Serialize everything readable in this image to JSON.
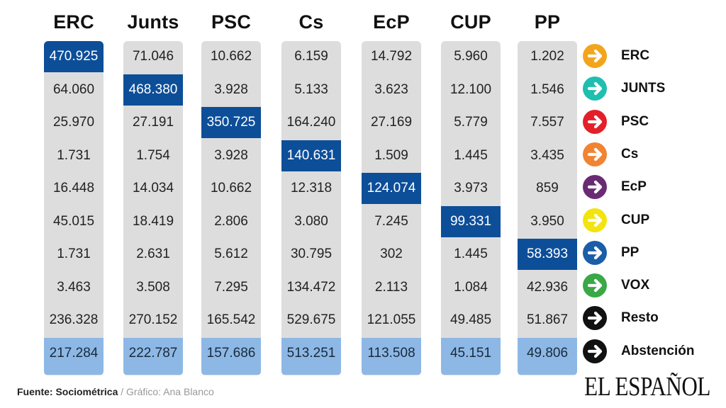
{
  "chart_data": {
    "type": "table",
    "columns": [
      "ERC",
      "Junts",
      "PSC",
      "Cs",
      "EcP",
      "CUP",
      "PP"
    ],
    "rows": [
      [
        "470.925",
        "71.046",
        "10.662",
        "6.159",
        "14.792",
        "5.960",
        "1.202"
      ],
      [
        "64.060",
        "468.380",
        "3.928",
        "5.133",
        "3.623",
        "12.100",
        "1.546"
      ],
      [
        "25.970",
        "27.191",
        "350.725",
        "164.240",
        "27.169",
        "5.779",
        "7.557"
      ],
      [
        "1.731",
        "1.754",
        "3.928",
        "140.631",
        "1.509",
        "1.445",
        "3.435"
      ],
      [
        "16.448",
        "14.034",
        "10.662",
        "12.318",
        "124.074",
        "3.973",
        "859"
      ],
      [
        "45.015",
        "18.419",
        "2.806",
        "3.080",
        "7.245",
        "99.331",
        "3.950"
      ],
      [
        "1.731",
        "2.631",
        "5.612",
        "30.795",
        "302",
        "1.445",
        "58.393"
      ],
      [
        "3.463",
        "3.508",
        "7.295",
        "134.472",
        "2.113",
        "1.084",
        "42.936"
      ],
      [
        "236.328",
        "270.152",
        "165.542",
        "529.675",
        "121.055",
        "49.485",
        "51.867"
      ],
      [
        "217.284",
        "222.787",
        "157.686",
        "513.251",
        "113.508",
        "45.151",
        "49.806"
      ]
    ],
    "row_labels": [
      "ERC",
      "JUNTS",
      "PSC",
      "Cs",
      "EcP",
      "CUP",
      "PP",
      "VOX",
      "Resto",
      "Abstención"
    ],
    "row_colors": [
      "#f2a51c",
      "#1fbfb0",
      "#e3202a",
      "#f08433",
      "#6b2b74",
      "#f2e40c",
      "#1a5da8",
      "#3aa845",
      "#111111",
      "#111111"
    ],
    "highlight_color": "#0d4e99",
    "abstention_color": "#8db8e6",
    "column_bg_color": "#dddddd"
  },
  "footer": {
    "source_label": "Fuente: Sociométrica",
    "separator": " / ",
    "credit": "Gráfico: Ana Blanco"
  },
  "logo": {
    "text": "EL ESPAÑOL"
  }
}
